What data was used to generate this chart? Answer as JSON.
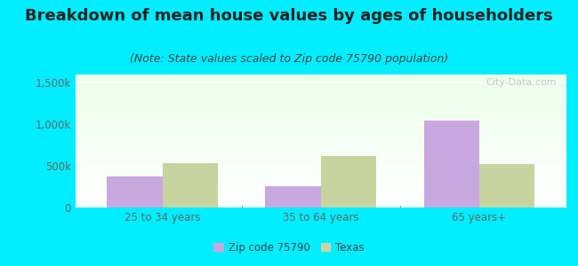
{
  "title": "Breakdown of mean house values by ages of householders",
  "subtitle": "(Note: State values scaled to Zip code 75790 population)",
  "categories": [
    "25 to 34 years",
    "35 to 64 years",
    "65 years+"
  ],
  "zip_values": [
    375000,
    260000,
    1050000
  ],
  "texas_values": [
    530000,
    620000,
    520000
  ],
  "zip_color": "#c9a8e0",
  "texas_color": "#c8d4a0",
  "ylim": [
    0,
    1600000
  ],
  "yticks": [
    0,
    500000,
    1000000,
    1500000
  ],
  "ytick_labels": [
    "0",
    "500k",
    "1,000k",
    "1,500k"
  ],
  "background_outer": "#00eeff",
  "title_fontsize": 13,
  "subtitle_fontsize": 9,
  "legend_labels": [
    "Zip code 75790",
    "Texas"
  ],
  "bar_width": 0.35,
  "watermark": "City-Data.com",
  "title_color": "#222222",
  "subtitle_color": "#444444",
  "tick_color": "#666666"
}
